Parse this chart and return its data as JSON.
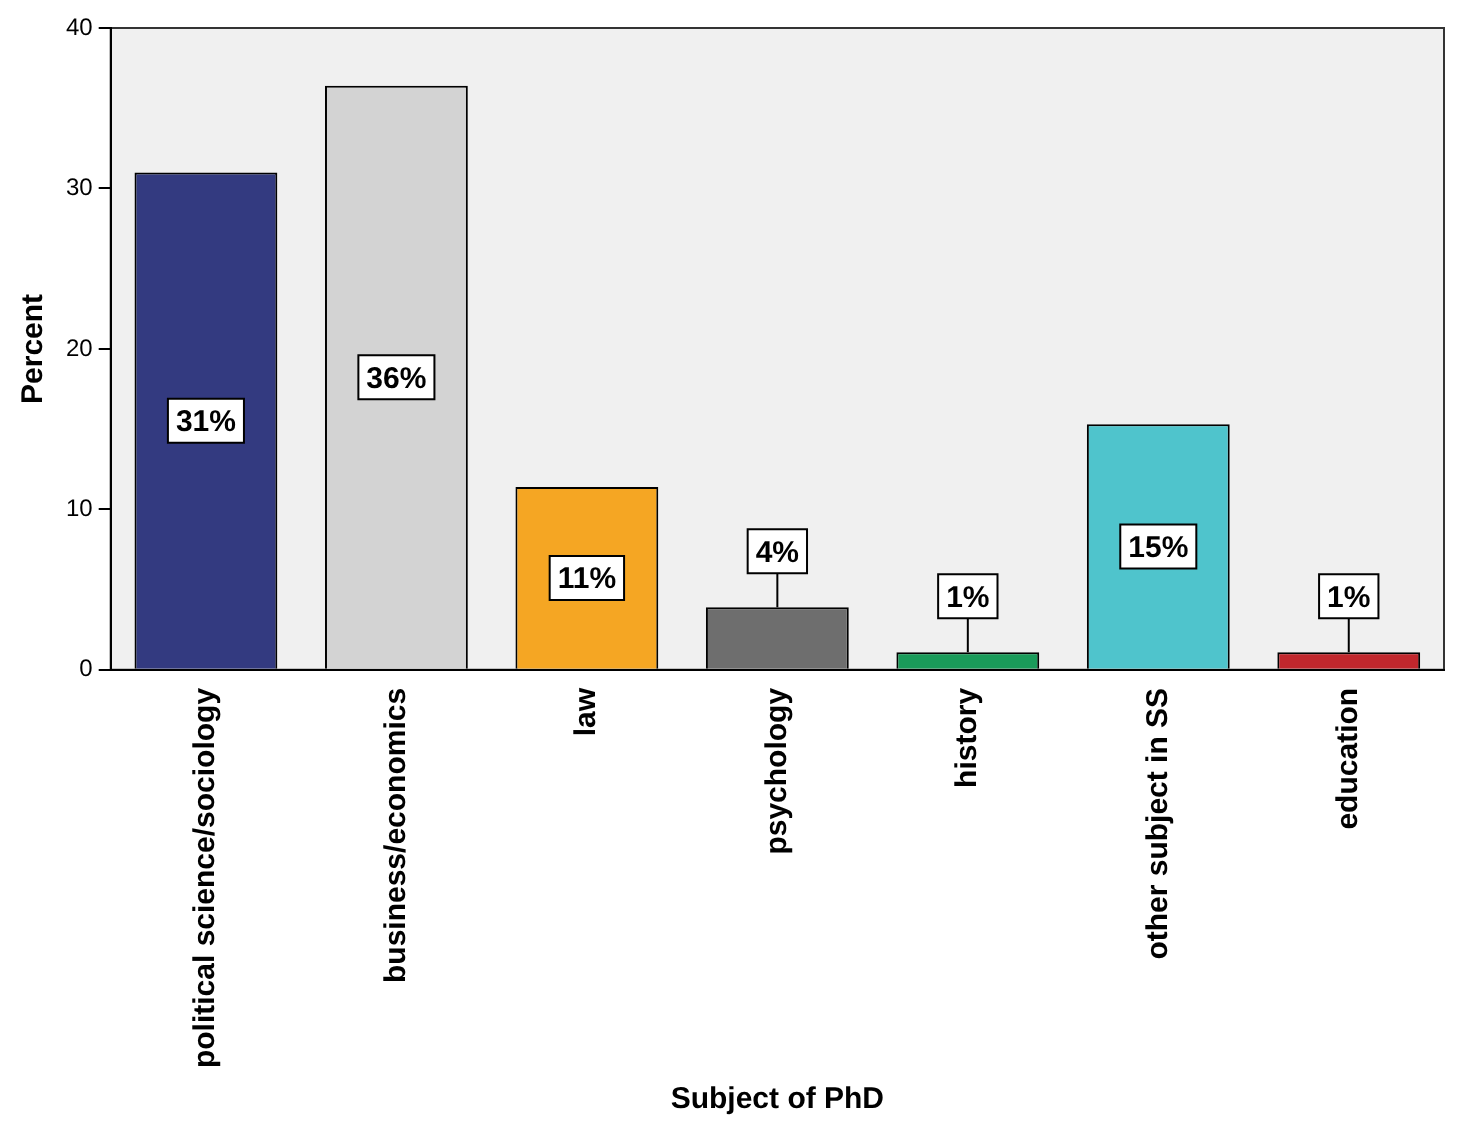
{
  "chart_data": {
    "type": "bar",
    "xlabel": "Subject of PhD",
    "ylabel": "Percent",
    "categories": [
      "political science/sociology",
      "business/economics",
      "law",
      "psychology",
      "history",
      "other subject in SS",
      "education"
    ],
    "values": [
      31,
      36.4,
      11.4,
      3.9,
      1.1,
      15.3,
      1.1
    ],
    "colors": [
      "#333a80",
      "#d3d3d3",
      "#f5a623",
      "#6e6e6e",
      "#1a9b5a",
      "#4fc4cc",
      "#c1272d"
    ],
    "value_labels": [
      "31%",
      "36%",
      "11%",
      "4%",
      "1%",
      "15%",
      "1%"
    ],
    "ylim": [
      0,
      40
    ],
    "yticks": [
      0,
      10,
      20,
      30,
      40
    ],
    "grid": false,
    "legend": false
  }
}
